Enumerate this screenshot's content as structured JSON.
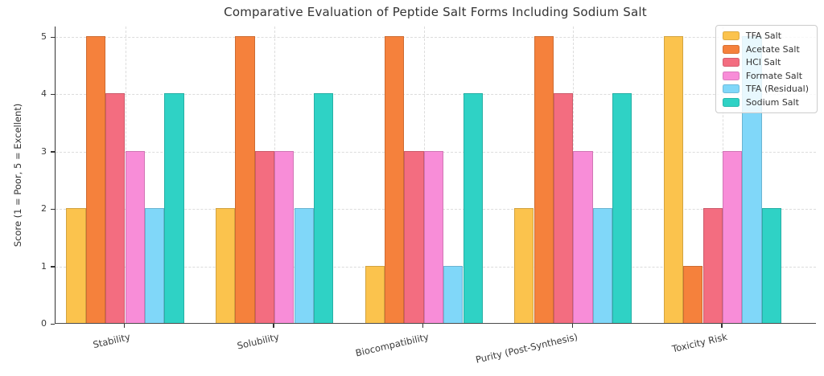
{
  "figure": {
    "background_color": "#ffffff",
    "text_color": "#333333",
    "grid_color": "#dcdcdc",
    "axis_color": "#333333"
  },
  "chart_data": {
    "type": "bar",
    "title": "Comparative Evaluation of Peptide Salt Forms Including Sodium Salt",
    "xlabel": "",
    "ylabel": "Score (1 = Poor, 5 = Excellent)",
    "categories": [
      "Stability",
      "Solubility",
      "Biocompatibility",
      "Purity (Post-Synthesis)",
      "Toxicity Risk"
    ],
    "series": [
      {
        "name": "TFA Salt",
        "color": "#FBC34D",
        "values": [
          2,
          2,
          1,
          2,
          5
        ]
      },
      {
        "name": "Acetate Salt",
        "color": "#F5813C",
        "values": [
          5,
          5,
          5,
          5,
          1
        ]
      },
      {
        "name": "HCl Salt",
        "color": "#F36D80",
        "values": [
          4,
          3,
          3,
          4,
          2
        ]
      },
      {
        "name": "Formate Salt",
        "color": "#F88DD8",
        "values": [
          3,
          3,
          3,
          3,
          3
        ]
      },
      {
        "name": "TFA (Residual)",
        "color": "#80D7F9",
        "values": [
          2,
          2,
          1,
          2,
          5
        ]
      },
      {
        "name": "Sodium Salt",
        "color": "#2FD2C5",
        "values": [
          4,
          4,
          4,
          4,
          2
        ]
      }
    ],
    "ylim": [
      0,
      5.2
    ],
    "yticks": [
      0,
      1,
      2,
      3,
      4,
      5
    ],
    "grid": true,
    "grid_style": "dashed",
    "legend_position": "upper right"
  }
}
